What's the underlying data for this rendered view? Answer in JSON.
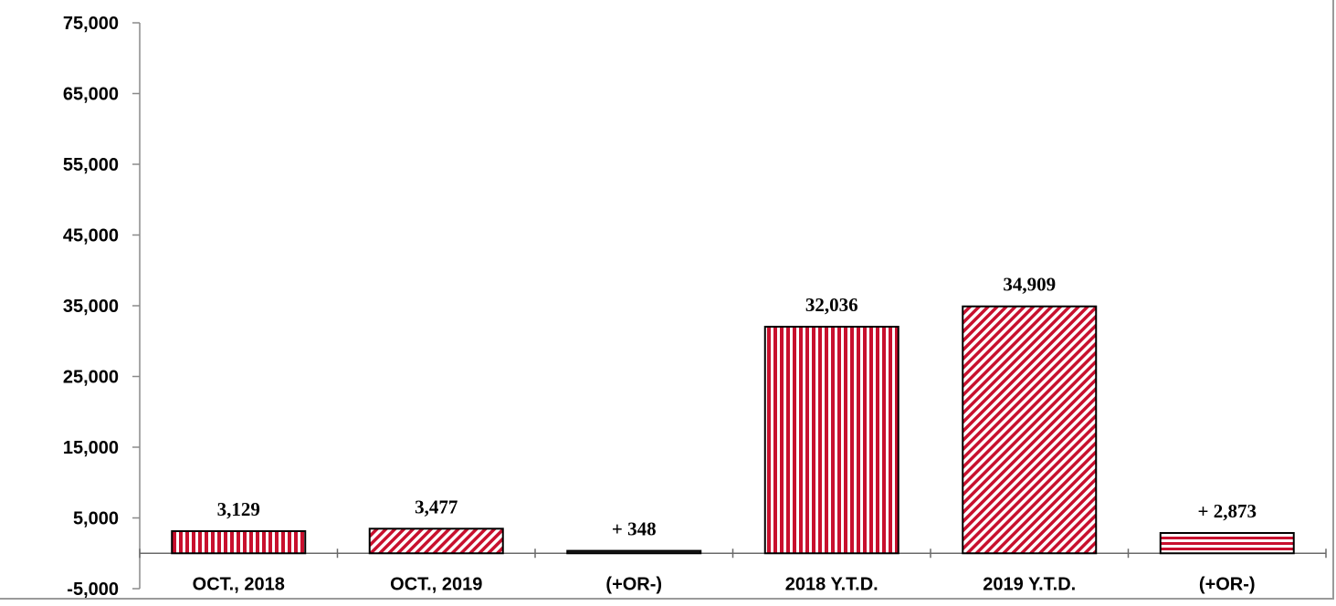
{
  "chart_data": {
    "type": "bar",
    "title": "",
    "xlabel": "",
    "ylabel": "",
    "categories": [
      "OCT., 2018",
      "OCT., 2019",
      "(+OR-)",
      "2018 Y.T.D.",
      "2019 Y.T.D.",
      "(+OR-)"
    ],
    "values": [
      3129,
      3477,
      348,
      32036,
      34909,
      2873
    ],
    "data_labels": [
      "3,129",
      "3,477",
      "+ 348",
      "32,036",
      "34,909",
      "+ 2,873"
    ],
    "patterns": [
      "vertical-stripes",
      "diagonal-hatch",
      "solid-dark",
      "vertical-stripes",
      "diagonal-hatch",
      "horizontal-stripes"
    ],
    "ylim": [
      -5000,
      75000
    ],
    "yticks": [
      75000,
      65000,
      55000,
      45000,
      35000,
      25000,
      15000,
      5000,
      -5000
    ],
    "ytick_labels": [
      "75,000",
      "65,000",
      "55,000",
      "45,000",
      "35,000",
      "25,000",
      "15,000",
      "5,000",
      "-5,000"
    ],
    "grid": false,
    "colors": {
      "bar_fill": "#c8102e",
      "bar_stroke": "#000000",
      "background": "#ffffff",
      "dark_bar": "#3a3a3a"
    }
  }
}
